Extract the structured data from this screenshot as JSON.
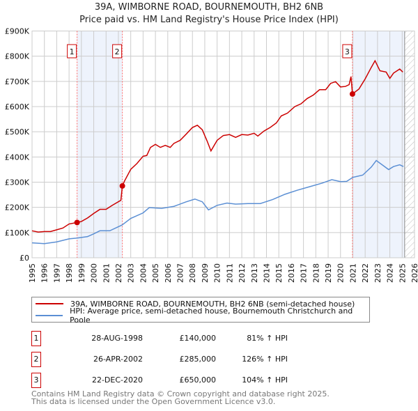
{
  "title": "39A, WIMBORNE ROAD, BOURNEMOUTH, BH2 6NB",
  "subtitle": "Price paid vs. HM Land Registry's House Price Index (HPI)",
  "chart_data": {
    "type": "line",
    "xlim": [
      1995,
      2026
    ],
    "ylim": [
      0,
      900000
    ],
    "y_ticks": [
      {
        "v": 0,
        "label": "£0"
      },
      {
        "v": 100000,
        "label": "£100K"
      },
      {
        "v": 200000,
        "label": "£200K"
      },
      {
        "v": 300000,
        "label": "£300K"
      },
      {
        "v": 400000,
        "label": "£400K"
      },
      {
        "v": 500000,
        "label": "£500K"
      },
      {
        "v": 600000,
        "label": "£600K"
      },
      {
        "v": 700000,
        "label": "£700K"
      },
      {
        "v": 800000,
        "label": "£800K"
      },
      {
        "v": 900000,
        "label": "£900K"
      }
    ],
    "x_ticks": [
      "1995",
      "1996",
      "1997",
      "1998",
      "1999",
      "2000",
      "2001",
      "2002",
      "2003",
      "2004",
      "2005",
      "2006",
      "2007",
      "2008",
      "2009",
      "2010",
      "2011",
      "2012",
      "2013",
      "2014",
      "2015",
      "2016",
      "2017",
      "2018",
      "2019",
      "2020",
      "2021",
      "2022",
      "2023",
      "2024",
      "2025",
      "2026"
    ],
    "grid": true,
    "shaded_ranges": [
      [
        1998.65,
        2002.32
      ],
      [
        2020.97,
        2025.2
      ]
    ],
    "hatched_from": 2025.2,
    "colors": {
      "property": "#cc0000",
      "hpi": "#5b8fd4",
      "shade": "#eef3fc",
      "marker_line": "#ff6666"
    },
    "series": [
      {
        "name": "39A, WIMBORNE ROAD, BOURNEMOUTH, BH2 6NB (semi-detached house)",
        "key": "property",
        "points": [
          [
            1995,
            107000
          ],
          [
            1995.5,
            102000
          ],
          [
            1996,
            104000
          ],
          [
            1996.5,
            104000
          ],
          [
            1997,
            111000
          ],
          [
            1997.5,
            118000
          ],
          [
            1998,
            134000
          ],
          [
            1998.65,
            140000
          ],
          [
            1999,
            144000
          ],
          [
            1999.5,
            158000
          ],
          [
            2000,
            176000
          ],
          [
            2000.5,
            192000
          ],
          [
            2001,
            192000
          ],
          [
            2001.5,
            208000
          ],
          [
            2002.2,
            228000
          ],
          [
            2002.32,
            285000
          ],
          [
            2002.5,
            305000
          ],
          [
            2003,
            351000
          ],
          [
            2003.5,
            374000
          ],
          [
            2004,
            403000
          ],
          [
            2004.3,
            406000
          ],
          [
            2004.6,
            438000
          ],
          [
            2005,
            450000
          ],
          [
            2005.4,
            438000
          ],
          [
            2005.8,
            446000
          ],
          [
            2006.2,
            438000
          ],
          [
            2006.5,
            454000
          ],
          [
            2007,
            466000
          ],
          [
            2007.5,
            491000
          ],
          [
            2008,
            517000
          ],
          [
            2008.4,
            526000
          ],
          [
            2008.8,
            508000
          ],
          [
            2009.2,
            462000
          ],
          [
            2009.5,
            424000
          ],
          [
            2010,
            466000
          ],
          [
            2010.5,
            485000
          ],
          [
            2011,
            489000
          ],
          [
            2011.5,
            478000
          ],
          [
            2012,
            489000
          ],
          [
            2012.5,
            487000
          ],
          [
            2013,
            494000
          ],
          [
            2013.3,
            483000
          ],
          [
            2013.8,
            503000
          ],
          [
            2014.3,
            517000
          ],
          [
            2014.8,
            535000
          ],
          [
            2015.2,
            563000
          ],
          [
            2015.7,
            574000
          ],
          [
            2016.3,
            600000
          ],
          [
            2016.8,
            611000
          ],
          [
            2017.3,
            632000
          ],
          [
            2017.8,
            646000
          ],
          [
            2018.3,
            667000
          ],
          [
            2018.8,
            667000
          ],
          [
            2019.2,
            692000
          ],
          [
            2019.6,
            699000
          ],
          [
            2020,
            678000
          ],
          [
            2020.4,
            680000
          ],
          [
            2020.7,
            687000
          ],
          [
            2020.85,
            719000
          ],
          [
            2020.97,
            650000
          ],
          [
            2021.5,
            670000
          ],
          [
            2022,
            710000
          ],
          [
            2022.5,
            756000
          ],
          [
            2022.8,
            782000
          ],
          [
            2023.2,
            742000
          ],
          [
            2023.7,
            737000
          ],
          [
            2024,
            712000
          ],
          [
            2024.3,
            733000
          ],
          [
            2024.8,
            749000
          ],
          [
            2025.05,
            737000
          ]
        ]
      },
      {
        "name": "HPI: Average price, semi-detached house, Bournemouth Christchurch and Poole",
        "key": "hpi",
        "points": [
          [
            1995,
            59000
          ],
          [
            1996,
            56000
          ],
          [
            1997,
            63000
          ],
          [
            1998,
            75000
          ],
          [
            1998.65,
            78000
          ],
          [
            1999.5,
            84000
          ],
          [
            2000,
            95000
          ],
          [
            2000.5,
            107000
          ],
          [
            2001.3,
            107000
          ],
          [
            2002.3,
            130000
          ],
          [
            2003,
            156000
          ],
          [
            2004,
            178000
          ],
          [
            2004.5,
            199000
          ],
          [
            2005.5,
            196000
          ],
          [
            2006.5,
            204000
          ],
          [
            2007.5,
            222000
          ],
          [
            2008.2,
            233000
          ],
          [
            2008.8,
            222000
          ],
          [
            2009.3,
            190000
          ],
          [
            2010,
            208000
          ],
          [
            2010.8,
            217000
          ],
          [
            2011.5,
            213000
          ],
          [
            2012.5,
            215000
          ],
          [
            2013.5,
            215000
          ],
          [
            2014.5,
            231000
          ],
          [
            2015.5,
            252000
          ],
          [
            2016.5,
            268000
          ],
          [
            2017.5,
            282000
          ],
          [
            2018.5,
            296000
          ],
          [
            2019.3,
            310000
          ],
          [
            2020,
            302000
          ],
          [
            2020.5,
            303000
          ],
          [
            2021,
            319000
          ],
          [
            2021.8,
            328000
          ],
          [
            2022.5,
            360000
          ],
          [
            2022.9,
            386000
          ],
          [
            2023.4,
            368000
          ],
          [
            2023.9,
            350000
          ],
          [
            2024.3,
            362000
          ],
          [
            2024.8,
            369000
          ],
          [
            2025.1,
            362000
          ]
        ]
      }
    ],
    "sales": [
      {
        "num": "1",
        "x": 1998.65,
        "price": 140000,
        "date": "28-AUG-1998",
        "price_label": "£140,000",
        "hpi": "81% ↑ HPI"
      },
      {
        "num": "2",
        "x": 2002.32,
        "price": 285000,
        "date": "26-APR-2002",
        "price_label": "£285,000",
        "hpi": "126% ↑ HPI"
      },
      {
        "num": "3",
        "x": 2020.97,
        "price": 650000,
        "date": "22-DEC-2020",
        "price_label": "£650,000",
        "hpi": "104% ↑ HPI"
      }
    ]
  },
  "footer": {
    "line1": "Contains HM Land Registry data © Crown copyright and database right 2025.",
    "line2": "This data is licensed under the Open Government Licence v3.0."
  }
}
